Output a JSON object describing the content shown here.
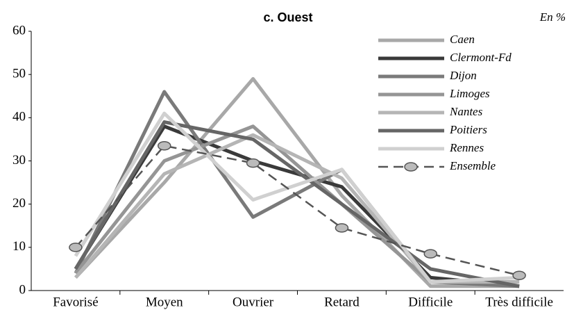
{
  "chart_data": {
    "type": "line",
    "title": "c. Ouest",
    "annotation": "En %",
    "categories": [
      "Favorisé",
      "Moyen",
      "Ouvrier",
      "Retard",
      "Difficile",
      "Très difficile"
    ],
    "ylim": [
      0,
      60
    ],
    "yticks": [
      0,
      10,
      20,
      30,
      40,
      50,
      60
    ],
    "legend": "top-right",
    "series": [
      {
        "name": "Caen",
        "color": "#a8a8a8",
        "values": [
          3,
          25,
          49,
          22,
          1,
          1
        ]
      },
      {
        "name": "Clermont-Fd",
        "color": "#3a3a3a",
        "values": [
          5,
          38,
          30,
          24,
          3,
          1
        ]
      },
      {
        "name": "Dijon",
        "color": "#7a7a7a",
        "values": [
          4,
          46,
          17,
          28,
          2,
          1
        ]
      },
      {
        "name": "Limoges",
        "color": "#959595",
        "values": [
          4,
          30,
          38,
          20,
          2,
          2
        ]
      },
      {
        "name": "Nantes",
        "color": "#b5b5b5",
        "values": [
          3,
          27,
          36,
          26,
          2,
          2
        ]
      },
      {
        "name": "Poitiers",
        "color": "#666666",
        "values": [
          5,
          39,
          35,
          20,
          5,
          1
        ]
      },
      {
        "name": "Rennes",
        "color": "#d0d0d0",
        "values": [
          8,
          41,
          21,
          28,
          2,
          3
        ]
      },
      {
        "name": "Ensemble",
        "color": "#555555",
        "style": "dashed",
        "markers": true,
        "values": [
          10,
          33.5,
          29.5,
          14.5,
          8.5,
          3.5
        ]
      }
    ]
  }
}
